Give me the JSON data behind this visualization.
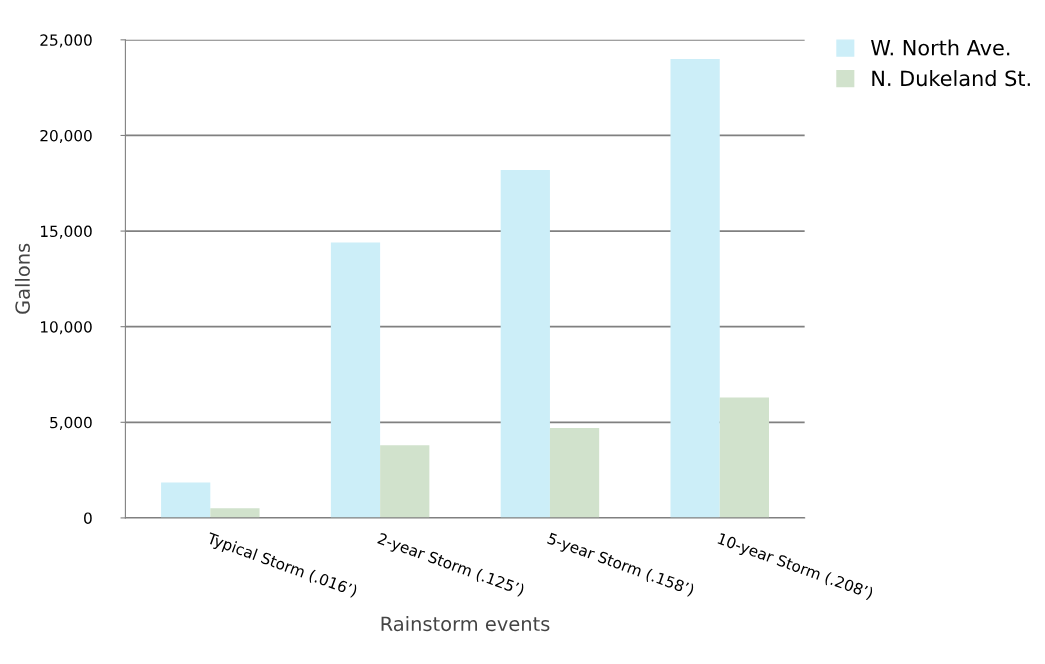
{
  "chart_data": {
    "type": "bar",
    "xlabel": "Rainstorm events",
    "ylabel": "Gallons",
    "categories": [
      "Typical Storm (.016’)",
      "2-year Storm (.125’)",
      "5-year Storm (.158’)",
      "10-year Storm (.208’)"
    ],
    "series": [
      {
        "name": "W. North Ave.",
        "color": "#cceef8",
        "values": [
          1850,
          14400,
          18200,
          24000
        ]
      },
      {
        "name": "N. Dukeland St.",
        "color": "#d1e2cc",
        "values": [
          500,
          3800,
          4700,
          6300
        ]
      }
    ],
    "ylim": [
      0,
      25000
    ],
    "yticks": [
      {
        "value": 0,
        "label": "0"
      },
      {
        "value": 5000,
        "label": "5,000"
      },
      {
        "value": 10000,
        "label": "10,000"
      },
      {
        "value": 15000,
        "label": "15,000"
      },
      {
        "value": 20000,
        "label": "20,000"
      },
      {
        "value": 25000,
        "label": "25,000"
      }
    ],
    "grid": "y",
    "legend": "top right"
  }
}
